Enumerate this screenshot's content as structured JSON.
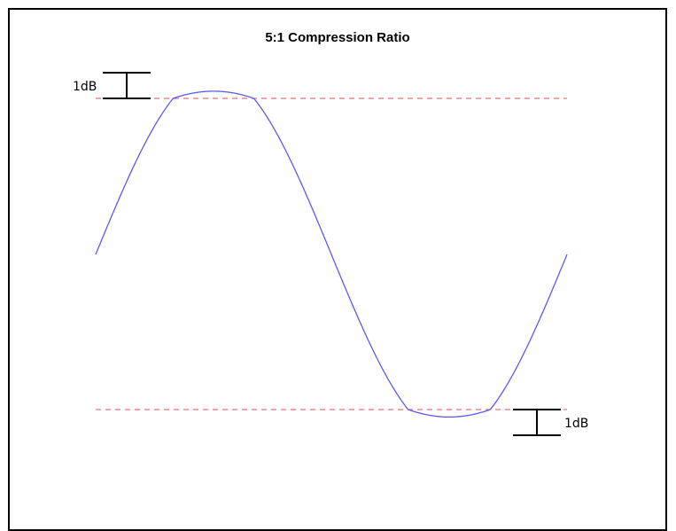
{
  "diagram": {
    "title": "5:1 Compression Ratio",
    "top_marker_label": "1dB",
    "bottom_marker_label": "1dB"
  },
  "colors": {
    "waveform": "#5b5bf0",
    "threshold": "#e87070",
    "frame": "#000000",
    "marker": "#000000"
  }
}
